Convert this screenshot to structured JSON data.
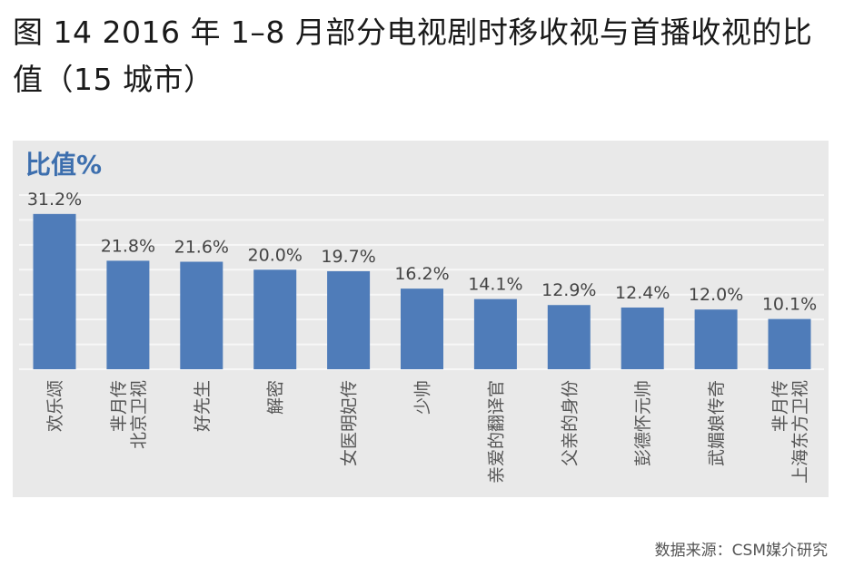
{
  "title": "图 14 2016 年 1–8 月部分电视剧时移收视与首播收视的比值（15 城市）",
  "source": "数据来源：CSM媒介研究",
  "colors": {
    "bar": "#4f7cb9",
    "panel": "#e9e9e9",
    "ylabel": "#3d6fae"
  },
  "chart_data": {
    "type": "bar",
    "ylabel": "比值%",
    "xlabel": "",
    "ylim": [
      0,
      35
    ],
    "grid": true,
    "categories": [
      [
        "欢乐颂"
      ],
      [
        "芈月传",
        "北京卫视"
      ],
      [
        "好先生"
      ],
      [
        "解密"
      ],
      [
        "女医明妃传"
      ],
      [
        "少帅"
      ],
      [
        "亲爱的翻译官"
      ],
      [
        "父亲的身份"
      ],
      [
        "彭德怀元帅"
      ],
      [
        "武媚娘传奇"
      ],
      [
        "芈月传",
        "上海东方卫视"
      ]
    ],
    "values": [
      31.2,
      21.8,
      21.6,
      20.0,
      19.7,
      16.2,
      14.1,
      12.9,
      12.4,
      12.0,
      10.1
    ],
    "value_labels": [
      "31.2%",
      "21.8%",
      "21.6%",
      "20.0%",
      "19.7%",
      "16.2%",
      "14.1%",
      "12.9%",
      "12.4%",
      "12.0%",
      "10.1%"
    ]
  }
}
